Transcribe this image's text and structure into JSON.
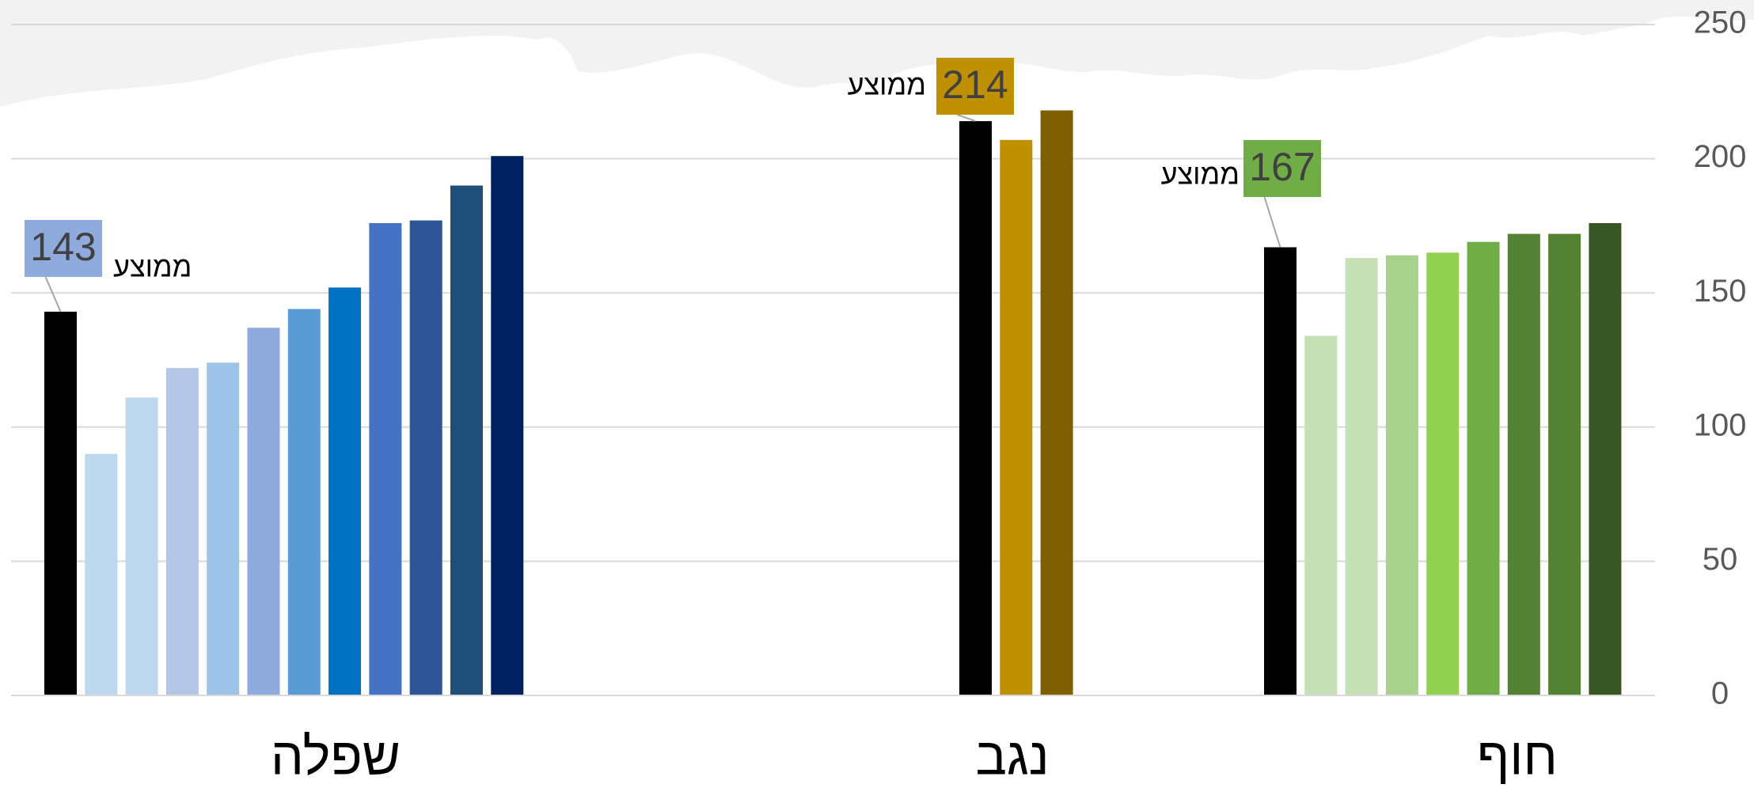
{
  "chart_data": {
    "type": "bar",
    "ylim": [
      0,
      250
    ],
    "yticks": [
      0,
      50,
      100,
      150,
      200,
      250
    ],
    "grid": true,
    "groups": [
      {
        "name": "שפלה",
        "annotation": "ממוצע",
        "label_color": "#8faadc",
        "values": [
          143,
          90,
          111,
          122,
          124,
          137,
          144,
          152,
          176,
          177,
          190,
          201
        ],
        "colors": [
          "#000000",
          "#bdd7ee",
          "#bdd7ee",
          "#b4c7e7",
          "#9dc3e6",
          "#8faadc",
          "#5b9bd5",
          "#0070c0",
          "#4472c4",
          "#2f5597",
          "#1f4e79",
          "#002060"
        ]
      },
      {
        "name": "נגב",
        "annotation": "ממוצע",
        "label_color": "#bf9000",
        "values": [
          214,
          207,
          218
        ],
        "colors": [
          "#000000",
          "#bf9000",
          "#7f6000"
        ]
      },
      {
        "name": "חוף",
        "annotation": "ממוצע",
        "label_color": "#70ad47",
        "values": [
          167,
          134,
          163,
          164,
          165,
          169,
          172,
          172,
          176
        ],
        "colors": [
          "#000000",
          "#c5e0b4",
          "#c5e0b4",
          "#a9d18e",
          "#92d050",
          "#70ad47",
          "#548235",
          "#548235",
          "#375623"
        ]
      }
    ]
  }
}
